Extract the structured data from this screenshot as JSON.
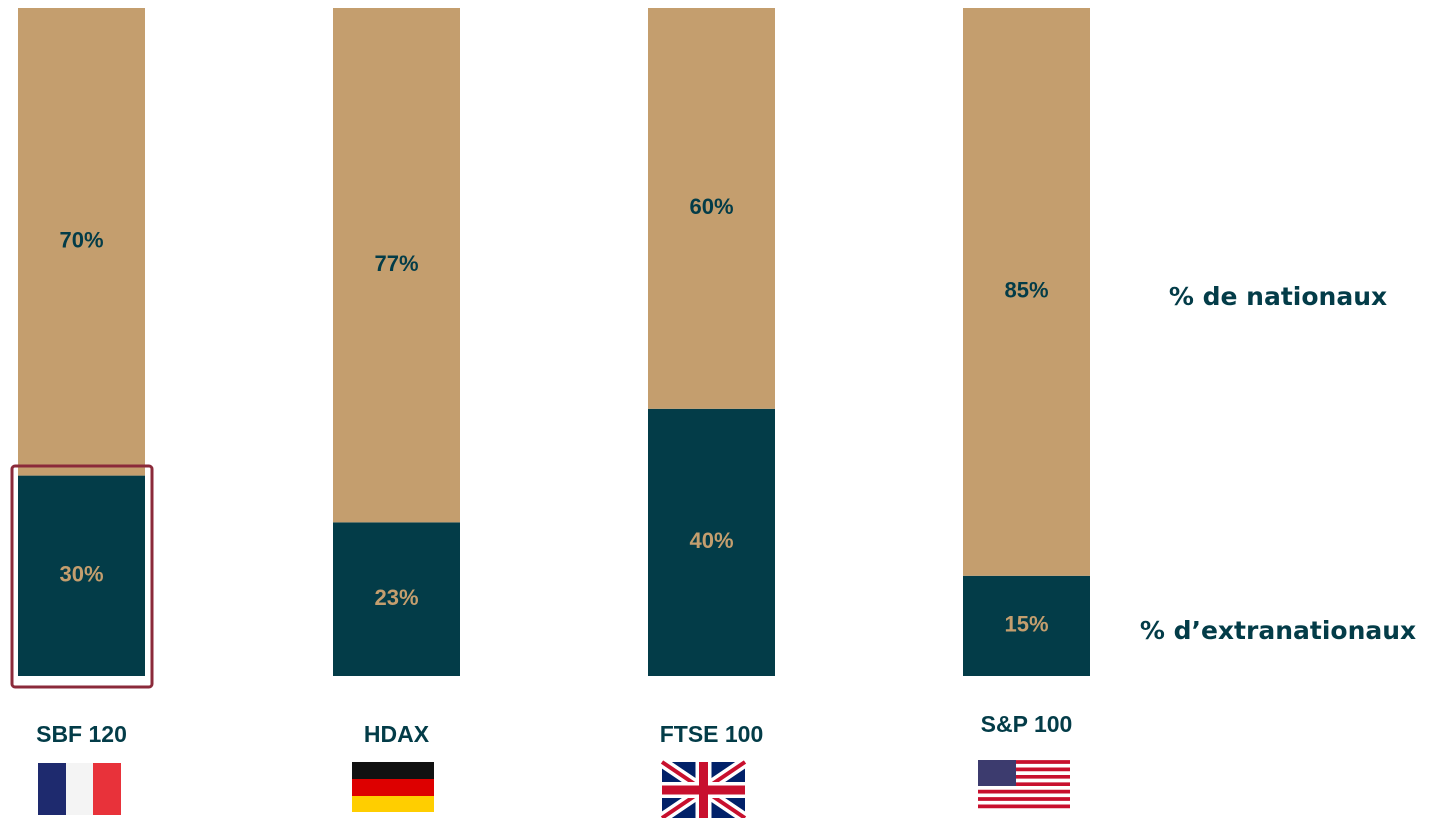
{
  "chart_data": {
    "type": "stacked_bar",
    "categories": [
      "SBF 120",
      "HDAX",
      "FTSE 100",
      "S&P 100"
    ],
    "series": [
      {
        "name": "% d’extranationaux",
        "color": "#033c48",
        "label_color": "#c49e6e",
        "values": [
          30,
          23,
          40,
          15
        ],
        "value_labels": [
          "30%",
          "23%",
          "40%",
          "15%"
        ]
      },
      {
        "name": "% de nationaux",
        "color": "#c49e6e",
        "label_color": "#033c48",
        "values": [
          70,
          77,
          60,
          85
        ],
        "value_labels": [
          "70%",
          "77%",
          "60%",
          "85%"
        ]
      }
    ]
  }
}
